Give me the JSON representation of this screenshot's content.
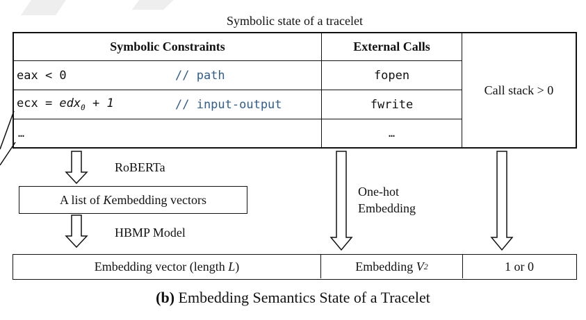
{
  "state_title": "Symbolic state of a tracelet",
  "table": {
    "col_constraints": "Symbolic Constraints",
    "col_calls": "External Calls",
    "rows": [
      {
        "code": "eax < 0",
        "comment": "// path",
        "call": "fopen"
      },
      {
        "code_prefix": "ecx = ",
        "code_var": "edx",
        "code_sub": "0",
        "code_suffix": " + 1",
        "comment": "// input-output",
        "call": "fwrite"
      },
      {
        "code": "…",
        "call": "…"
      }
    ],
    "call_stack": "Call stack > 0"
  },
  "roberta_label": "RoBERTa",
  "list_box": {
    "prefix": "A list of ",
    "var": "K",
    "suffix": "embedding vectors"
  },
  "hbmp_label": "HBMP Model",
  "onehot_label_1": "One-hot",
  "onehot_label_2": "Embedding",
  "bottom": {
    "vec_prefix": "Embedding vector (length ",
    "vec_var": "L",
    "vec_suffix": ")",
    "emb_prefix": "Embedding ",
    "emb_var": "V",
    "emb_sub": "2",
    "bin": "1 or 0"
  },
  "caption_bold": "(b)",
  "caption_rest": " Embedding Semantics State of a Tracelet",
  "colors": {
    "comment": "#2f5d8c",
    "line": "#111111",
    "watermark": "#e8e8e8"
  }
}
